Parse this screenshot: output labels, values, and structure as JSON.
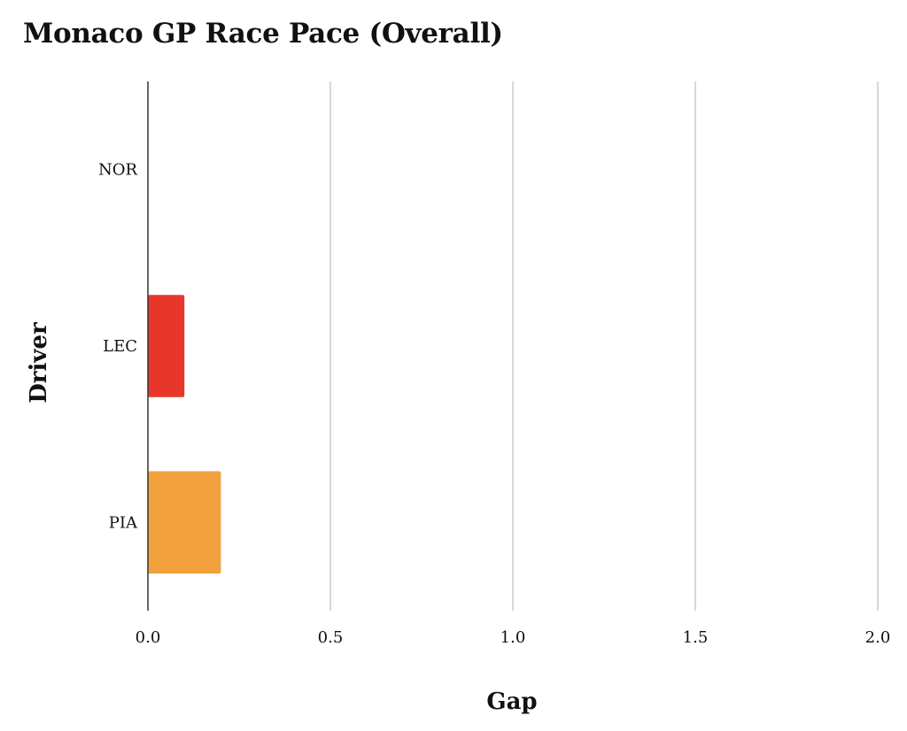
{
  "chart_data": {
    "type": "bar",
    "orientation": "horizontal",
    "title": "Monaco GP Race Pace (Overall)",
    "xlabel": "Gap",
    "ylabel": "Driver",
    "categories": [
      "NOR",
      "LEC",
      "PIA"
    ],
    "values": [
      0.0,
      0.1,
      0.2
    ],
    "bar_colors": [
      "#1f77b4",
      "#e8372a",
      "#f2a03d"
    ],
    "xlim": [
      0,
      2.0
    ],
    "xticks": [
      "0.0",
      "0.5",
      "1.0",
      "1.5",
      "2.0"
    ],
    "grid": "vertical",
    "legend": "none"
  }
}
